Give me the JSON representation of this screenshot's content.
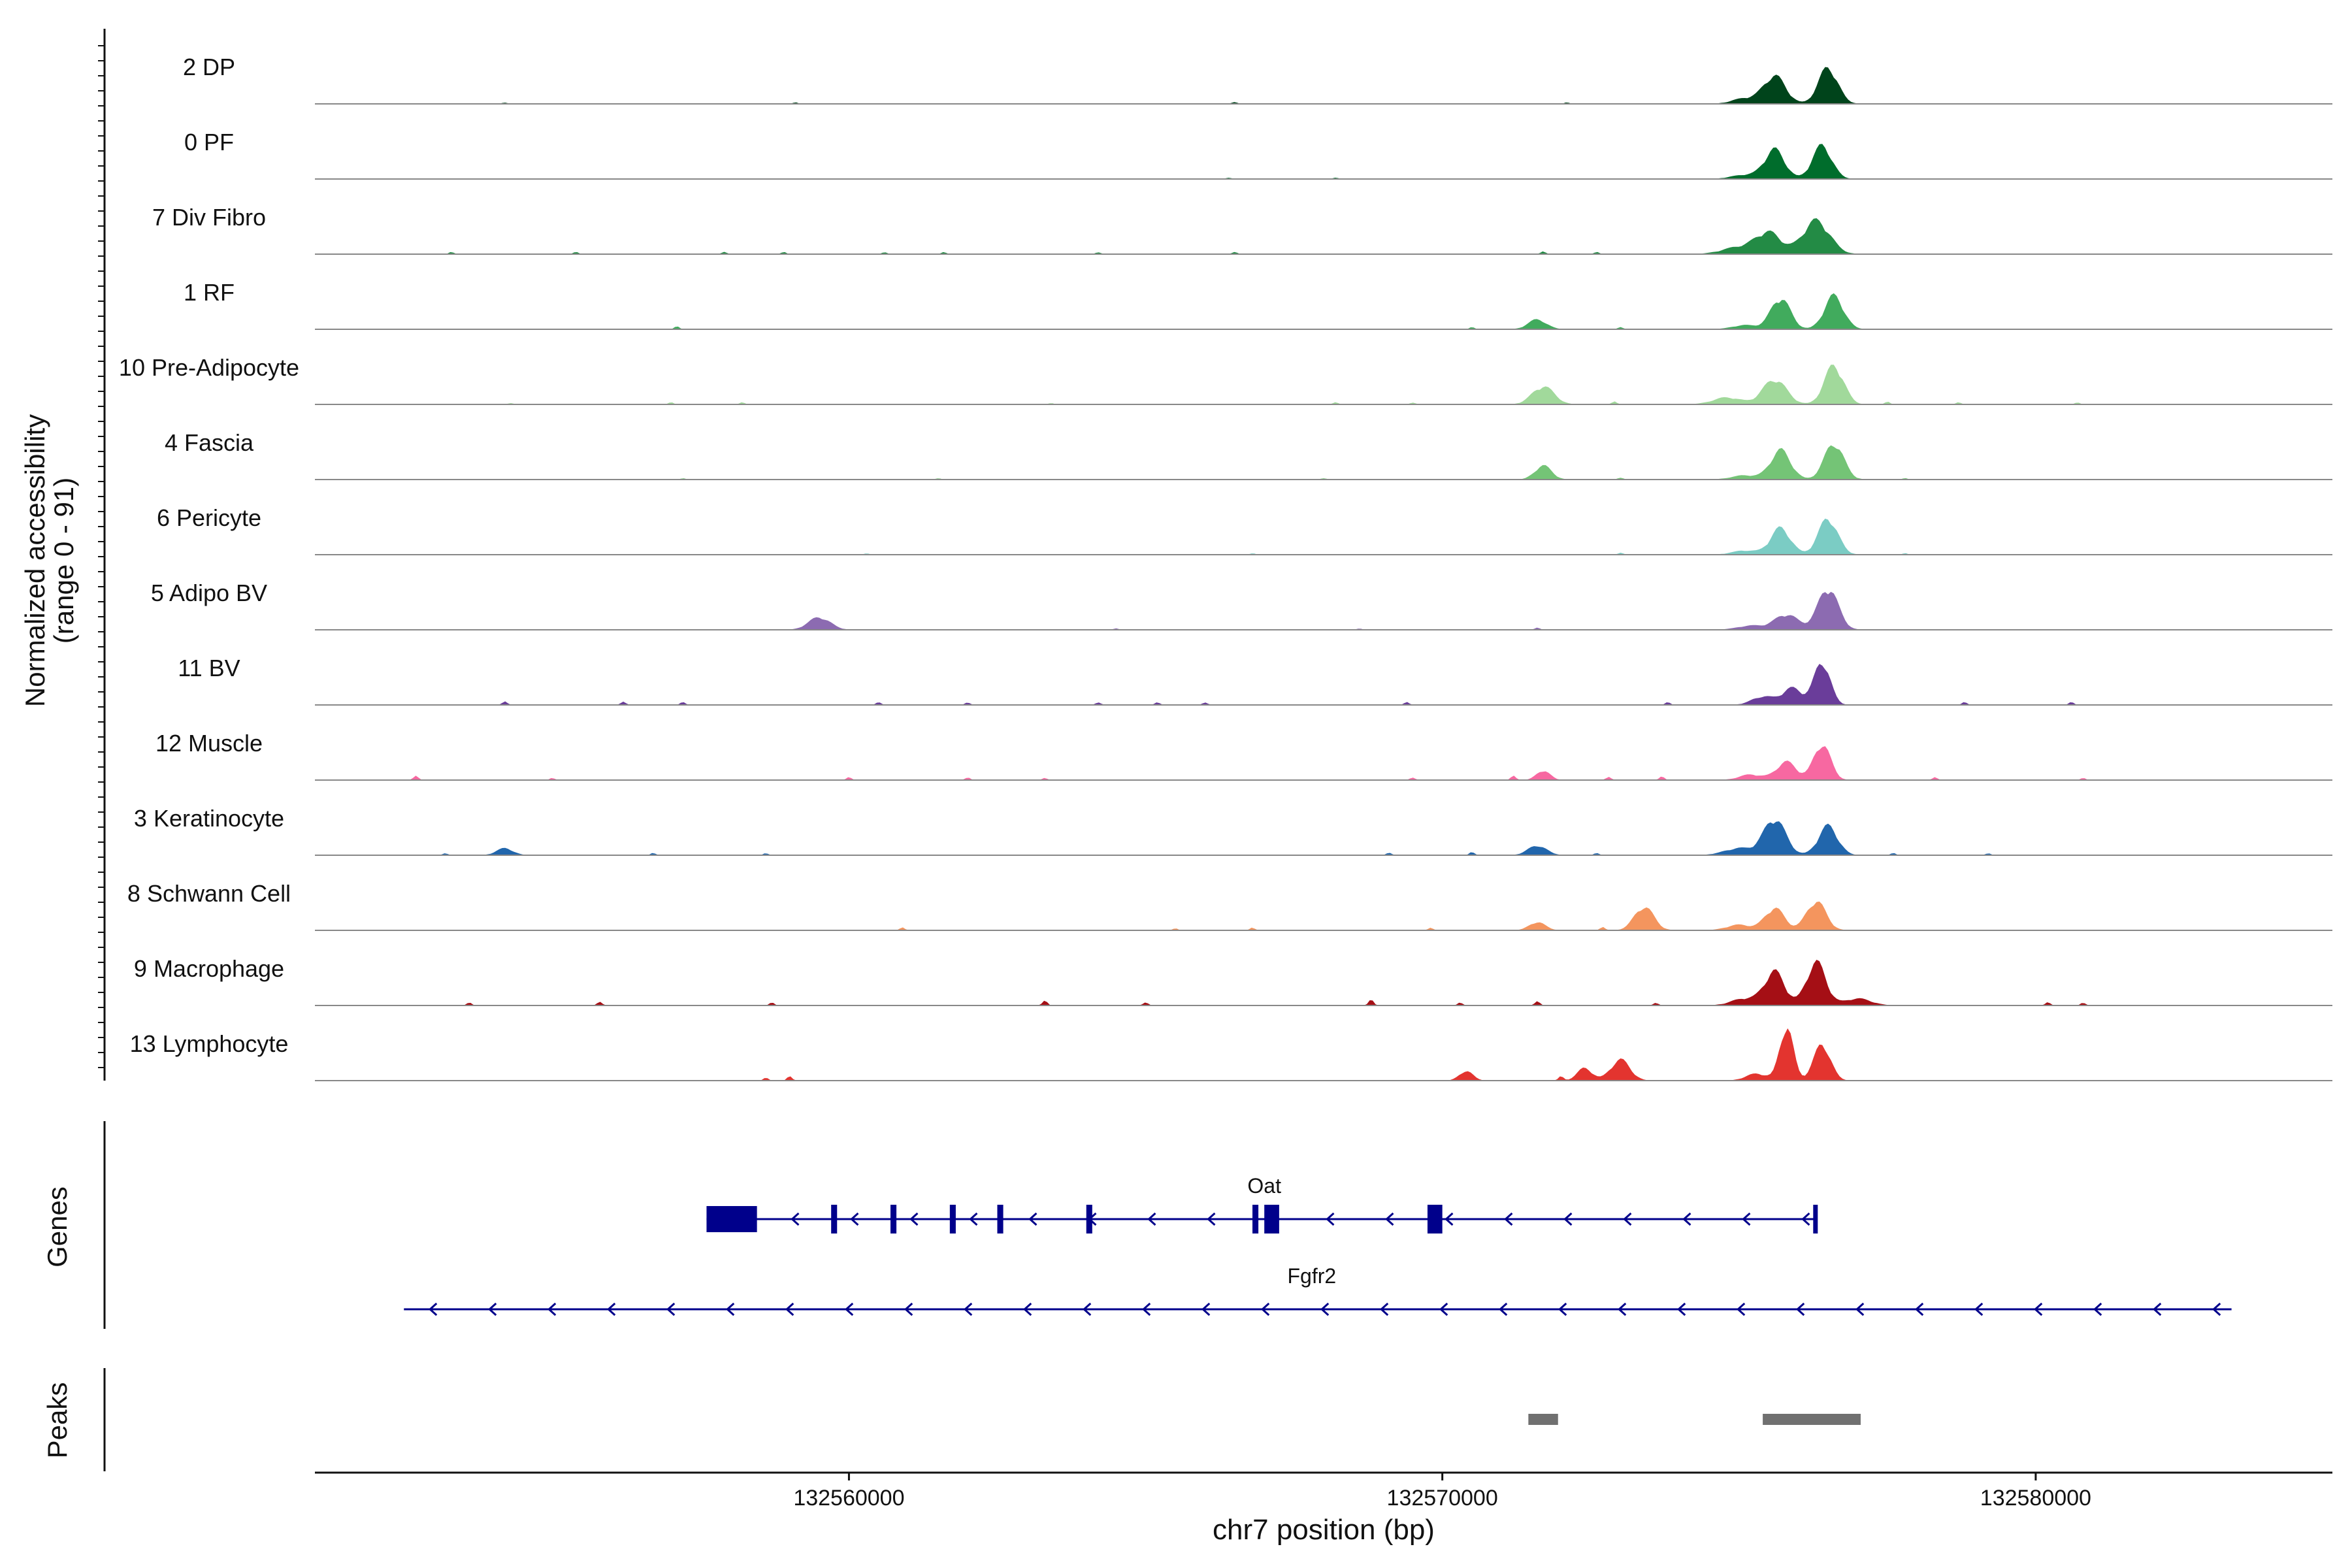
{
  "chart_data": {
    "type": "area",
    "title": "",
    "ylabel_line1": "Normalized accessibility",
    "ylabel_line2": "(range 0 - 91)",
    "genes_label": "Genes",
    "peaks_label": "Peaks",
    "xlabel": "chr7 position (bp)",
    "xlim": [
      132551000,
      132585000
    ],
    "xticks": [
      132560000,
      132570000,
      132580000
    ],
    "xtick_labels": [
      "132560000",
      "132570000",
      "132580000"
    ],
    "track_max": 91,
    "tracks": [
      {
        "name": "2 DP",
        "color": "#00441b",
        "peaks": [
          [
            132575600,
            40,
            260
          ],
          [
            132576500,
            52,
            230
          ],
          [
            132575100,
            8,
            300
          ]
        ],
        "bumps": [
          [
            132554200,
            2
          ],
          [
            132559100,
            2
          ],
          [
            132566500,
            3
          ],
          [
            132572100,
            2
          ]
        ]
      },
      {
        "name": "0 PF",
        "color": "#006d2c",
        "peaks": [
          [
            132575600,
            42,
            240
          ],
          [
            132576400,
            48,
            230
          ],
          [
            132575100,
            6,
            320
          ]
        ],
        "bumps": [
          [
            132568200,
            2
          ],
          [
            132566400,
            2
          ]
        ]
      },
      {
        "name": "7 Div Fibro",
        "color": "#238b45",
        "peaks": [
          [
            132575500,
            30,
            300
          ],
          [
            132576300,
            48,
            320
          ],
          [
            132575000,
            10,
            400
          ]
        ],
        "bumps": [
          [
            132553300,
            3
          ],
          [
            132555400,
            3
          ],
          [
            132557900,
            3
          ],
          [
            132558900,
            3
          ],
          [
            132560600,
            3
          ],
          [
            132561600,
            3
          ],
          [
            132564200,
            3
          ],
          [
            132566500,
            3
          ],
          [
            132571700,
            4
          ],
          [
            132572600,
            3
          ]
        ]
      },
      {
        "name": "1 RF",
        "color": "#41ab5d",
        "peaks": [
          [
            132575700,
            45,
            230
          ],
          [
            132576600,
            48,
            230
          ],
          [
            132571600,
            14,
            220
          ],
          [
            132575100,
            6,
            300
          ]
        ],
        "bumps": [
          [
            132557100,
            4
          ],
          [
            132570500,
            3
          ],
          [
            132573000,
            3
          ]
        ]
      },
      {
        "name": "10 Pre-Adipocyte",
        "color": "#a1d99b",
        "peaks": [
          [
            132575600,
            36,
            280
          ],
          [
            132576600,
            56,
            230
          ],
          [
            132571700,
            26,
            260
          ],
          [
            132574800,
            10,
            340
          ]
        ],
        "bumps": [
          [
            132554300,
            2
          ],
          [
            132557000,
            3
          ],
          [
            132558200,
            3
          ],
          [
            132563400,
            2
          ],
          [
            132568200,
            3
          ],
          [
            132569500,
            3
          ],
          [
            132572900,
            4
          ],
          [
            132577500,
            4
          ],
          [
            132578700,
            3
          ],
          [
            132580700,
            3
          ]
        ]
      },
      {
        "name": "4 Fascia",
        "color": "#74c476",
        "peaks": [
          [
            132575700,
            42,
            240
          ],
          [
            132576600,
            52,
            230
          ],
          [
            132571700,
            20,
            200
          ],
          [
            132575100,
            6,
            320
          ]
        ],
        "bumps": [
          [
            132557200,
            2
          ],
          [
            132561500,
            2
          ],
          [
            132568000,
            2
          ],
          [
            132573000,
            3
          ],
          [
            132577800,
            2
          ]
        ]
      },
      {
        "name": "6 Pericyte",
        "color": "#7bccc4",
        "peaks": [
          [
            132575700,
            38,
            240
          ],
          [
            132576500,
            52,
            230
          ],
          [
            132575100,
            6,
            300
          ]
        ],
        "bumps": [
          [
            132560300,
            2
          ],
          [
            132566800,
            2
          ],
          [
            132573000,
            3
          ],
          [
            132577800,
            2
          ]
        ]
      },
      {
        "name": "5 Adipo BV",
        "color": "#8c6bb1",
        "peaks": [
          [
            132576500,
            60,
            240
          ],
          [
            132575800,
            22,
            280
          ],
          [
            132559500,
            18,
            260
          ],
          [
            132575200,
            6,
            320
          ]
        ],
        "bumps": [
          [
            132564500,
            2
          ],
          [
            132568600,
            2
          ],
          [
            132571600,
            3
          ]
        ]
      },
      {
        "name": "11 BV",
        "color": "#6a3d9a",
        "peaks": [
          [
            132576400,
            62,
            190
          ],
          [
            132575900,
            24,
            240
          ],
          [
            132575400,
            12,
            260
          ]
        ],
        "bumps": [
          [
            132554200,
            5
          ],
          [
            132556200,
            5
          ],
          [
            132557200,
            4
          ],
          [
            132560500,
            4
          ],
          [
            132562000,
            4
          ],
          [
            132564200,
            4
          ],
          [
            132565200,
            4
          ],
          [
            132566000,
            4
          ],
          [
            132569400,
            4
          ],
          [
            132573800,
            4
          ],
          [
            132578800,
            4
          ],
          [
            132580600,
            4
          ]
        ]
      },
      {
        "name": "12 Muscle",
        "color": "#f768a1",
        "peaks": [
          [
            132576400,
            52,
            200
          ],
          [
            132575800,
            26,
            240
          ],
          [
            132571700,
            14,
            160
          ],
          [
            132575200,
            8,
            280
          ]
        ],
        "bumps": [
          [
            132552700,
            6
          ],
          [
            132555000,
            3
          ],
          [
            132560000,
            4
          ],
          [
            132562000,
            4
          ],
          [
            132563300,
            3
          ],
          [
            132569500,
            4
          ],
          [
            132571200,
            6
          ],
          [
            132572800,
            5
          ],
          [
            132573700,
            5
          ],
          [
            132578300,
            4
          ],
          [
            132580800,
            3
          ]
        ]
      },
      {
        "name": "3 Keratinocyte",
        "color": "#2166ac",
        "peaks": [
          [
            132575600,
            52,
            260
          ],
          [
            132576500,
            42,
            230
          ],
          [
            132571600,
            14,
            220
          ],
          [
            132554200,
            10,
            200
          ],
          [
            132575000,
            10,
            350
          ]
        ],
        "bumps": [
          [
            132553200,
            3
          ],
          [
            132556700,
            3
          ],
          [
            132558600,
            3
          ],
          [
            132569100,
            4
          ],
          [
            132570500,
            5
          ],
          [
            132572600,
            3
          ],
          [
            132577600,
            3
          ],
          [
            132579200,
            3
          ]
        ]
      },
      {
        "name": "8 Schwann Cell",
        "color": "#f4955e",
        "peaks": [
          [
            132576300,
            42,
            230
          ],
          [
            132575600,
            32,
            230
          ],
          [
            132573400,
            34,
            230
          ],
          [
            132571600,
            12,
            190
          ],
          [
            132575000,
            8,
            300
          ]
        ],
        "bumps": [
          [
            132560900,
            4
          ],
          [
            132565500,
            3
          ],
          [
            132566800,
            4
          ],
          [
            132569800,
            4
          ],
          [
            132572700,
            5
          ]
        ]
      },
      {
        "name": "9 Macrophage",
        "color": "#a50f15",
        "peaks": [
          [
            132576300,
            62,
            230
          ],
          [
            132575600,
            48,
            240
          ],
          [
            132575100,
            10,
            320
          ],
          [
            132577000,
            10,
            320
          ]
        ],
        "bumps": [
          [
            132553600,
            4
          ],
          [
            132555800,
            5
          ],
          [
            132558700,
            4
          ],
          [
            132563300,
            7
          ],
          [
            132565000,
            5
          ],
          [
            132568800,
            8
          ],
          [
            132570300,
            4
          ],
          [
            132571600,
            6
          ],
          [
            132573600,
            4
          ],
          [
            132580200,
            5
          ],
          [
            132580800,
            4
          ]
        ]
      },
      {
        "name": "13 Lymphocyte",
        "color": "#e3342f",
        "peaks": [
          [
            132575800,
            78,
            160
          ],
          [
            132576400,
            52,
            200
          ],
          [
            132573000,
            30,
            230
          ],
          [
            132572400,
            18,
            180
          ],
          [
            132570400,
            14,
            160
          ],
          [
            132575300,
            10,
            260
          ]
        ],
        "bumps": [
          [
            132559000,
            6
          ],
          [
            132558600,
            4
          ],
          [
            132572000,
            6
          ]
        ]
      }
    ],
    "genes": [
      {
        "name": "Oat",
        "start": 132557600,
        "end": 132576300,
        "strand": "-",
        "exons": [
          [
            132557600,
            132558450,
            "utr"
          ],
          [
            132559700,
            132559800,
            "cds"
          ],
          [
            132560700,
            132560800,
            "cds"
          ],
          [
            132561700,
            132561800,
            "cds"
          ],
          [
            132562500,
            132562600,
            "cds"
          ],
          [
            132564000,
            132564100,
            "cds"
          ],
          [
            132566800,
            132566900,
            "cds"
          ],
          [
            132567000,
            132567250,
            "cds"
          ],
          [
            132569750,
            132570000,
            "cds"
          ],
          [
            132576250,
            132576320,
            "cds"
          ]
        ]
      },
      {
        "name": "Fgfr2",
        "start": 132552500,
        "end": 132583300,
        "strand": "-",
        "exons": []
      }
    ],
    "peak_regions": [
      [
        132571450,
        132571950
      ],
      [
        132575400,
        132577050
      ]
    ]
  }
}
